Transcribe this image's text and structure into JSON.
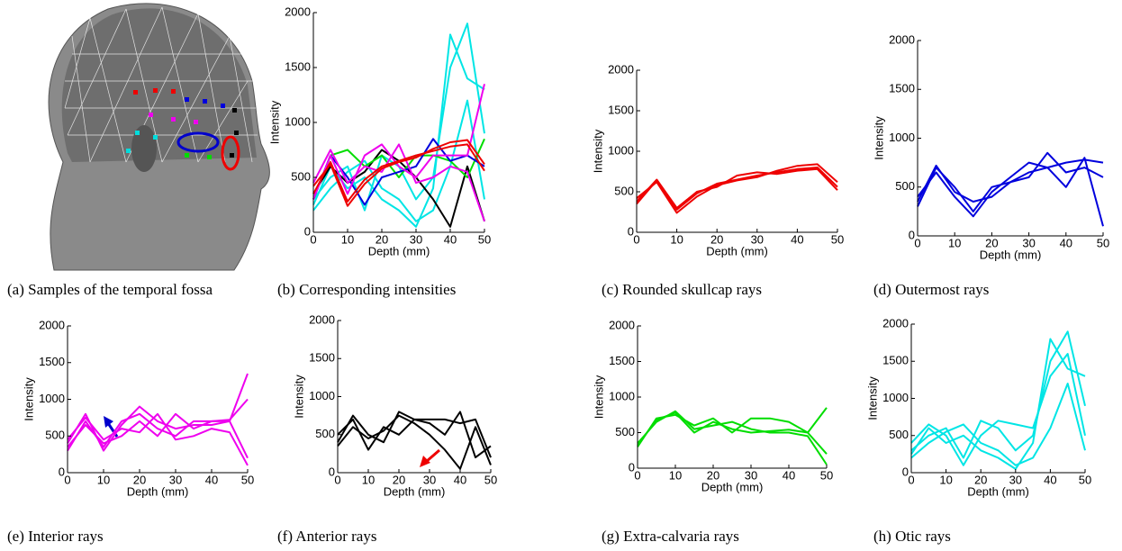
{
  "image_caption": "(a) Samples of the temporal fossa",
  "chart_data": [
    {
      "type": "line",
      "caption": "(b)  Corresponding intensities",
      "xlabel": "Depth (mm)",
      "ylabel": "Intensity",
      "x": [
        0,
        5,
        10,
        15,
        20,
        25,
        30,
        35,
        40,
        45,
        50
      ],
      "xlim": [
        0,
        50
      ],
      "xticks": [
        0,
        10,
        20,
        30,
        40,
        50
      ],
      "ylim": [
        0,
        2000
      ],
      "yticks": [
        0,
        500,
        1000,
        1500,
        2000
      ],
      "series": [
        {
          "color": "#00e5e5",
          "values": [
            250,
            600,
            400,
            500,
            300,
            200,
            50,
            400,
            1800,
            1400,
            1300
          ]
        },
        {
          "color": "#00e5e5",
          "values": [
            300,
            500,
            600,
            200,
            700,
            600,
            300,
            500,
            1500,
            1900,
            900
          ]
        },
        {
          "color": "#00e5e5",
          "values": [
            200,
            400,
            550,
            650,
            400,
            300,
            100,
            200,
            600,
            1200,
            300
          ]
        },
        {
          "color": "#000000",
          "values": [
            350,
            600,
            450,
            550,
            750,
            650,
            500,
            300,
            50,
            600,
            100
          ]
        },
        {
          "color": "#00dd00",
          "values": [
            300,
            700,
            750,
            600,
            700,
            500,
            700,
            700,
            650,
            500,
            850
          ]
        },
        {
          "color": "#0000dd",
          "values": [
            300,
            700,
            500,
            250,
            500,
            550,
            600,
            850,
            650,
            700,
            600
          ]
        },
        {
          "color": "#ee00ee",
          "values": [
            300,
            700,
            350,
            700,
            800,
            600,
            500,
            700,
            700,
            700,
            1350
          ]
        },
        {
          "color": "#ee00ee",
          "values": [
            450,
            750,
            450,
            600,
            550,
            800,
            450,
            500,
            600,
            550,
            100
          ]
        },
        {
          "color": "#ee0000",
          "values": [
            350,
            640,
            280,
            480,
            600,
            650,
            700,
            740,
            780,
            800,
            560
          ]
        },
        {
          "color": "#ee0000",
          "values": [
            420,
            620,
            240,
            440,
            580,
            640,
            680,
            760,
            820,
            840,
            620
          ]
        }
      ]
    },
    {
      "type": "line",
      "caption": "(c)  Rounded skullcap rays",
      "xlabel": "Depth (mm)",
      "ylabel": "Intensity",
      "x": [
        0,
        5,
        10,
        15,
        20,
        25,
        30,
        35,
        40,
        45,
        50
      ],
      "xlim": [
        0,
        50
      ],
      "xticks": [
        0,
        10,
        20,
        30,
        40,
        50
      ],
      "ylim": [
        0,
        2000
      ],
      "yticks": [
        0,
        500,
        1000,
        1500,
        2000
      ],
      "series": [
        {
          "color": "#ee0000",
          "values": [
            350,
            640,
            280,
            480,
            600,
            650,
            700,
            740,
            780,
            800,
            560
          ]
        },
        {
          "color": "#ee0000",
          "values": [
            420,
            620,
            240,
            440,
            580,
            640,
            680,
            760,
            820,
            840,
            620
          ]
        },
        {
          "color": "#ee0000",
          "values": [
            380,
            650,
            300,
            500,
            560,
            700,
            740,
            720,
            760,
            780,
            520
          ]
        }
      ]
    },
    {
      "type": "line",
      "caption": "(d)  Outermost rays",
      "xlabel": "Depth (mm)",
      "ylabel": "Intensity",
      "x": [
        0,
        5,
        10,
        15,
        20,
        25,
        30,
        35,
        40,
        45,
        50
      ],
      "xlim": [
        0,
        50
      ],
      "xticks": [
        0,
        10,
        20,
        30,
        40,
        50
      ],
      "ylim": [
        0,
        2000
      ],
      "yticks": [
        0,
        500,
        1000,
        1500,
        2000
      ],
      "series": [
        {
          "color": "#0000dd",
          "values": [
            300,
            700,
            500,
            250,
            500,
            550,
            600,
            850,
            650,
            700,
            600
          ]
        },
        {
          "color": "#0000dd",
          "values": [
            400,
            650,
            400,
            200,
            450,
            600,
            750,
            700,
            500,
            800,
            100
          ]
        },
        {
          "color": "#0000dd",
          "values": [
            350,
            720,
            450,
            350,
            400,
            550,
            650,
            700,
            750,
            780,
            750
          ]
        }
      ]
    },
    {
      "type": "line",
      "caption": "(e)  Interior rays",
      "xlabel": "Depth (mm)",
      "ylabel": "Intensity",
      "x": [
        0,
        5,
        10,
        15,
        20,
        25,
        30,
        35,
        40,
        45,
        50
      ],
      "xlim": [
        0,
        50
      ],
      "xticks": [
        0,
        10,
        20,
        30,
        40,
        50
      ],
      "ylim": [
        0,
        2000
      ],
      "yticks": [
        0,
        500,
        1000,
        1500,
        2000
      ],
      "series": [
        {
          "color": "#ee00ee",
          "values": [
            300,
            700,
            350,
            700,
            800,
            600,
            500,
            700,
            700,
            700,
            1350
          ]
        },
        {
          "color": "#ee00ee",
          "values": [
            400,
            800,
            300,
            650,
            900,
            700,
            600,
            650,
            650,
            700,
            200
          ]
        },
        {
          "color": "#ee00ee",
          "values": [
            450,
            750,
            450,
            600,
            550,
            800,
            450,
            500,
            600,
            550,
            100
          ]
        },
        {
          "color": "#ee00ee",
          "values": [
            350,
            650,
            400,
            500,
            700,
            500,
            800,
            600,
            700,
            720,
            1000
          ]
        }
      ]
    },
    {
      "type": "line",
      "caption": "(f) Anterior rays",
      "xlabel": "Depth (mm)",
      "ylabel": "Intensity",
      "x": [
        0,
        5,
        10,
        15,
        20,
        25,
        30,
        35,
        40,
        45,
        50
      ],
      "xlim": [
        0,
        50
      ],
      "xticks": [
        0,
        10,
        20,
        30,
        40,
        50
      ],
      "ylim": [
        0,
        2000
      ],
      "yticks": [
        0,
        500,
        1000,
        1500,
        2000
      ],
      "series": [
        {
          "color": "#000000",
          "values": [
            400,
            750,
            500,
            400,
            800,
            700,
            700,
            700,
            650,
            700,
            200
          ]
        },
        {
          "color": "#000000",
          "values": [
            350,
            600,
            450,
            550,
            750,
            650,
            500,
            300,
            50,
            600,
            100
          ]
        },
        {
          "color": "#000000",
          "values": [
            500,
            700,
            300,
            600,
            500,
            700,
            650,
            500,
            800,
            200,
            350
          ]
        }
      ]
    },
    {
      "type": "line",
      "caption": "(g)  Extra-calvaria rays",
      "xlabel": "Depth (mm)",
      "ylabel": "Intensity",
      "x": [
        0,
        5,
        10,
        15,
        20,
        25,
        30,
        35,
        40,
        45,
        50
      ],
      "xlim": [
        0,
        50
      ],
      "xticks": [
        0,
        10,
        20,
        30,
        40,
        50
      ],
      "ylim": [
        0,
        2000
      ],
      "yticks": [
        0,
        500,
        1000,
        1500,
        2000
      ],
      "series": [
        {
          "color": "#00dd00",
          "values": [
            300,
            700,
            750,
            600,
            700,
            500,
            700,
            700,
            650,
            500,
            850
          ]
        },
        {
          "color": "#00dd00",
          "values": [
            350,
            650,
            800,
            550,
            600,
            650,
            550,
            500,
            500,
            450,
            50
          ]
        },
        {
          "color": "#00dd00",
          "values": [
            320,
            680,
            780,
            500,
            650,
            550,
            500,
            520,
            540,
            500,
            200
          ]
        }
      ]
    },
    {
      "type": "line",
      "caption": "(h)  Otic rays",
      "xlabel": "Depth (mm)",
      "ylabel": "Intensity",
      "x": [
        0,
        5,
        10,
        15,
        20,
        25,
        30,
        35,
        40,
        45,
        50
      ],
      "xlim": [
        0,
        50
      ],
      "xticks": [
        0,
        10,
        20,
        30,
        40,
        50
      ],
      "ylim": [
        0,
        2000
      ],
      "yticks": [
        0,
        500,
        1000,
        1500,
        2000
      ],
      "series": [
        {
          "color": "#00e5e5",
          "values": [
            250,
            600,
            400,
            500,
            300,
            200,
            50,
            400,
            1800,
            1400,
            1300
          ]
        },
        {
          "color": "#00e5e5",
          "values": [
            300,
            500,
            600,
            200,
            700,
            600,
            300,
            500,
            1500,
            1900,
            900
          ]
        },
        {
          "color": "#00e5e5",
          "values": [
            400,
            650,
            500,
            100,
            500,
            700,
            650,
            600,
            1300,
            1600,
            500
          ]
        },
        {
          "color": "#00e5e5",
          "values": [
            200,
            400,
            550,
            650,
            400,
            300,
            100,
            200,
            600,
            1200,
            300
          ]
        }
      ]
    }
  ]
}
